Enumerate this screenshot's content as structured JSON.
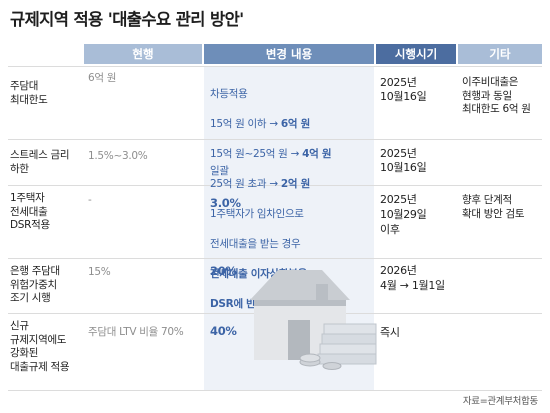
{
  "title": "규제지역 적용 '대출수요 관리 방안'",
  "headers": {
    "current": "현행",
    "change": "변경 내용",
    "date": "시행시기",
    "etc": "기타"
  },
  "rows": [
    {
      "label": "주담대\n최대한도",
      "current": "6억 원",
      "change_lines": [
        "차등적용",
        "15억 원 이하 → 6억 원",
        "15억 원~25억 원 → 4억 원",
        "25억 원 초과 → 2억 원"
      ],
      "date": "2025년\n10월16일",
      "etc": "이주비대출은\n현행과 동일\n최대한도 6억 원"
    },
    {
      "label": "스트레스 금리\n하한",
      "current": "1.5%~3.0%",
      "change_lines": [
        "일괄",
        "3.0%"
      ],
      "date": "2025년\n10월16일",
      "etc": ""
    },
    {
      "label": "1주택자\n전세대출\nDSR적용",
      "current": "-",
      "change_lines": [
        "1주택자가 임차인으로",
        "전세대출을 받는 경우",
        "전세대출 이자상환분을",
        "DSR에 반영"
      ],
      "date": "2025년\n10월29일\n이후",
      "etc": "향후 단계적\n확대 방안 검토"
    },
    {
      "label": "은행 주담대\n위험가중치\n조기 시행",
      "current": "15%",
      "change_lines": [
        "20%"
      ],
      "date": "2026년\n4월 → 1월1일",
      "etc": ""
    },
    {
      "label": "신규\n규제지역에도\n강화된\n대출규제 적용",
      "current": "주담대 LTV 비율 70%",
      "change_lines": [
        "40%"
      ],
      "date": "즉시",
      "etc": ""
    }
  ],
  "source": "자료=관계부처합동",
  "colors": {
    "header_light": "#a9bdd7",
    "header_mid": "#6e8eb9",
    "header_dark": "#4c6da0",
    "accent_text": "#3c64a6"
  }
}
